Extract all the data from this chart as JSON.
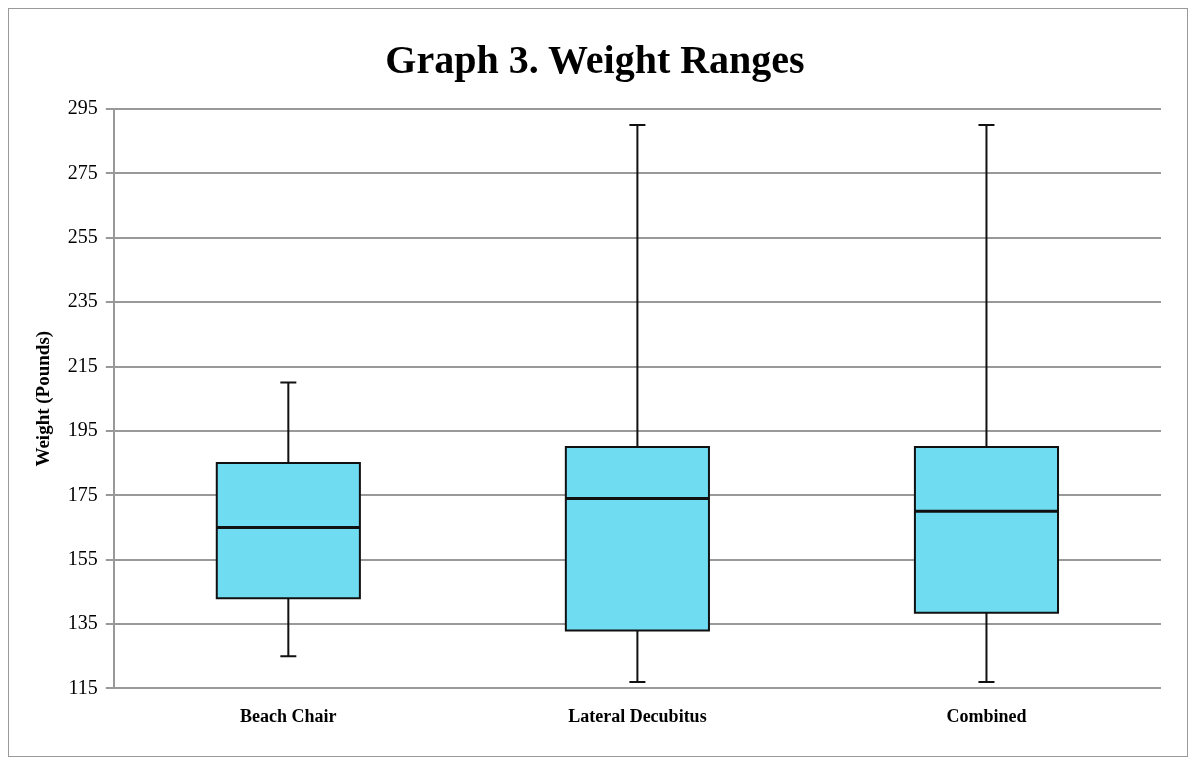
{
  "chart_data": {
    "type": "box",
    "title": "Graph 3. Weight Ranges",
    "ylabel": "Weight (Pounds)",
    "categories": [
      "Beach Chair",
      "Lateral Decubitus",
      "Combined"
    ],
    "boxes": [
      {
        "low": 125,
        "q1": 143,
        "median": 165,
        "q3": 185,
        "high": 210
      },
      {
        "low": 117,
        "q1": 133,
        "median": 174,
        "q3": 190,
        "high": 290
      },
      {
        "low": 117,
        "q1": 138.5,
        "median": 170,
        "q3": 190,
        "high": 290
      }
    ],
    "color": "#6fdcf1",
    "ylim": [
      115,
      295
    ],
    "yticks": [
      115,
      135,
      155,
      175,
      195,
      215,
      235,
      255,
      275,
      295
    ],
    "grid": "y"
  }
}
